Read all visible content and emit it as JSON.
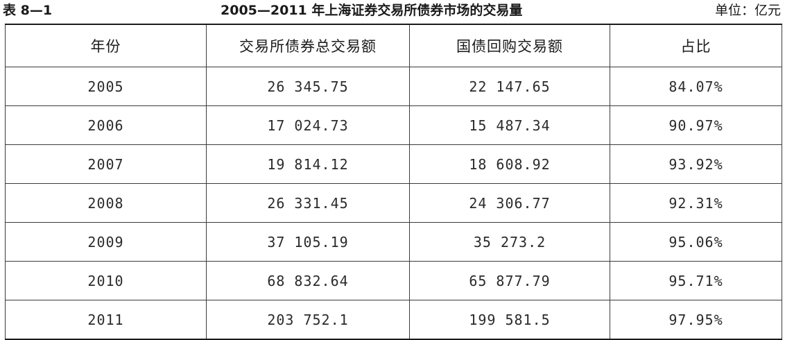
{
  "caption": {
    "table_number": "表 8—1",
    "title": "2005—2011 年上海证券交易所债券市场的交易量",
    "unit": "单位：亿元"
  },
  "table": {
    "headers": [
      "年份",
      "交易所债券总交易额",
      "国债回购交易额",
      "占比"
    ],
    "rows": [
      [
        "2005",
        "26 345.75",
        "22 147.65",
        "84.07%"
      ],
      [
        "2006",
        "17 024.73",
        "15 487.34",
        "90.97%"
      ],
      [
        "2007",
        "19 814.12",
        "18 608.92",
        "93.92%"
      ],
      [
        "2008",
        "26 331.45",
        "24 306.77",
        "92.31%"
      ],
      [
        "2009",
        "37 105.19",
        "35 273.2",
        "95.06%"
      ],
      [
        "2010",
        "68 832.64",
        "65 877.79",
        "95.71%"
      ],
      [
        "2011",
        "203 752.1",
        "199 581.5",
        "97.95%"
      ]
    ]
  }
}
